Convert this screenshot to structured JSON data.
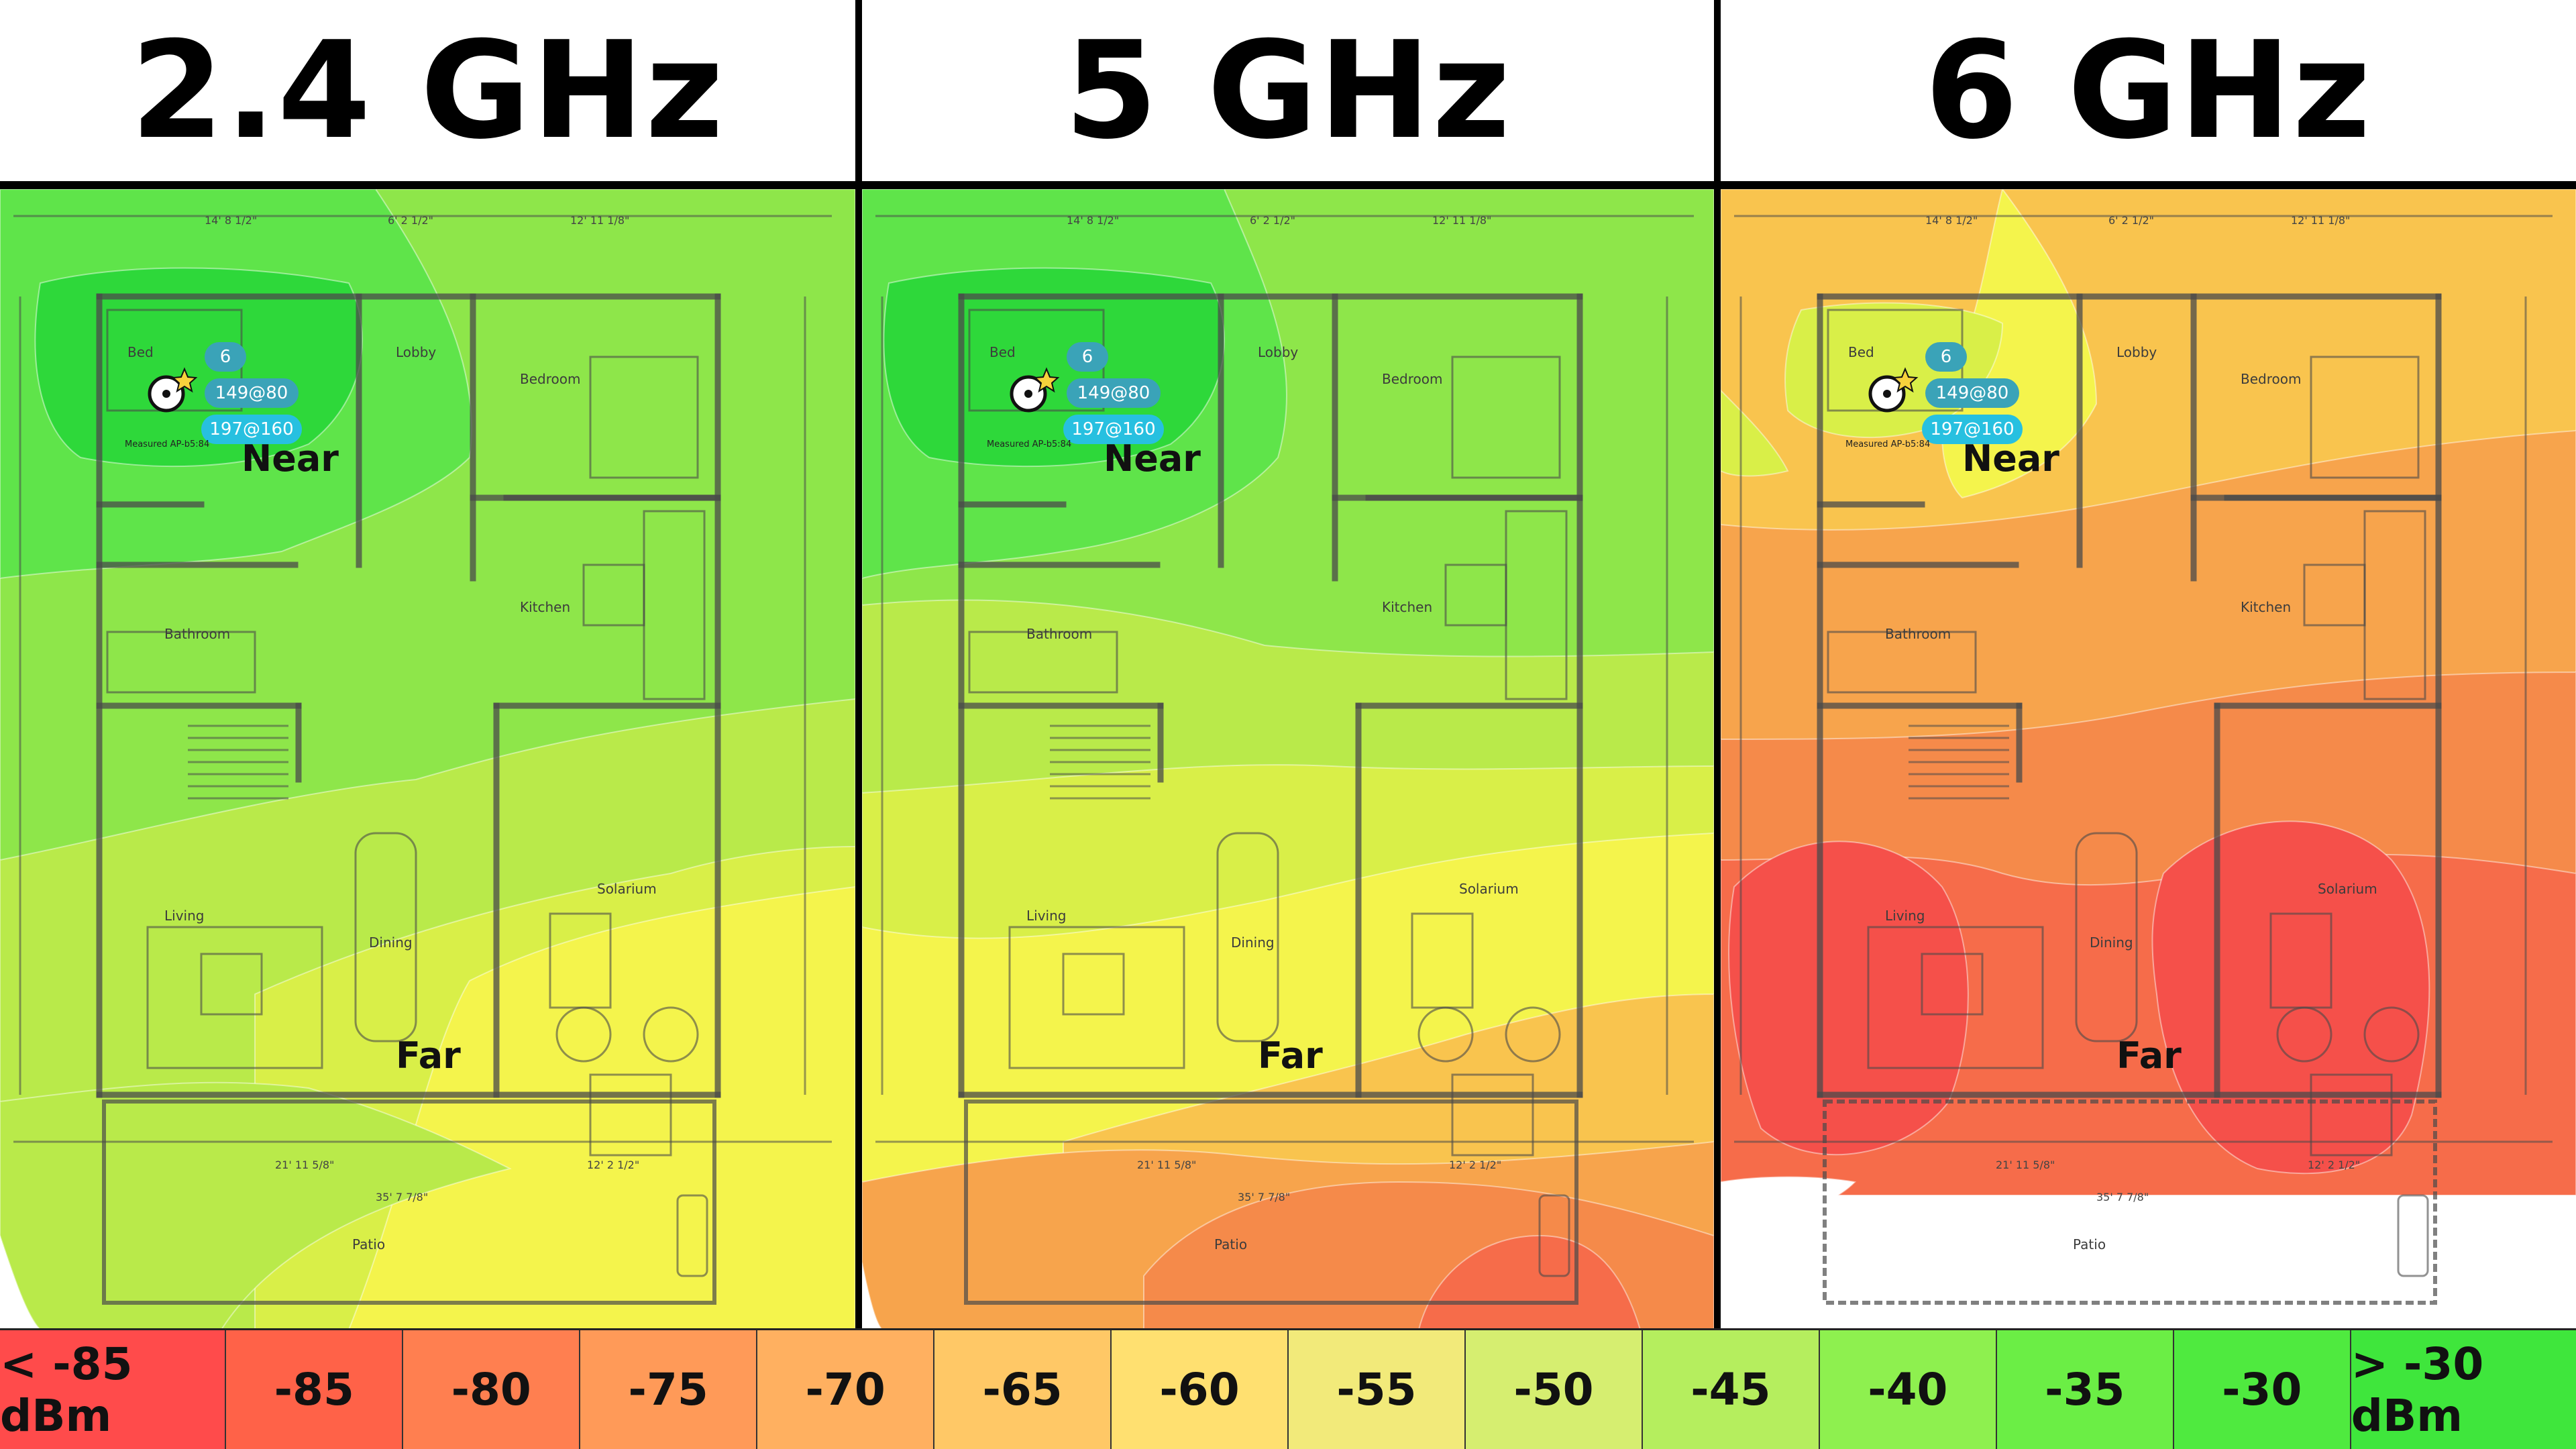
{
  "panels": [
    {
      "title": "2.4 GHz",
      "near_label": "Near",
      "far_label": "Far"
    },
    {
      "title": "5 GHz",
      "near_label": "Near",
      "far_label": "Far"
    },
    {
      "title": "6 GHz",
      "near_label": "Near",
      "far_label": "Far"
    }
  ],
  "ap": {
    "badge1": "6",
    "badge2": "149@80",
    "badge3": "197@160",
    "caption": "Measured AP-b5:84"
  },
  "rooms": {
    "bedroom_left": "Bed",
    "lobby": "Lobby",
    "bedroom": "Bedroom",
    "bathroom": "Bathroom",
    "kitchen": "Kitchen",
    "living": "Living",
    "dining": "Dining",
    "solarium": "Solarium",
    "patio": "Patio"
  },
  "dimensions": {
    "d1": "14' 8 1/2\"",
    "d2": "6' 2 1/2\"",
    "d3": "12' 11 1/8\"",
    "d4": "21' 11 5/8\"",
    "d5": "12' 2 1/2\"",
    "d6": "35' 7 7/8\""
  },
  "legend": [
    {
      "label": "< -85 dBm",
      "color": "#ff4b4b"
    },
    {
      "label": "-85",
      "color": "#ff6248"
    },
    {
      "label": "-80",
      "color": "#ff7f50"
    },
    {
      "label": "-75",
      "color": "#ff9a58"
    },
    {
      "label": "-70",
      "color": "#ffb060"
    },
    {
      "label": "-65",
      "color": "#ffc866"
    },
    {
      "label": "-60",
      "color": "#ffe070"
    },
    {
      "label": "-55",
      "color": "#f2ea7a"
    },
    {
      "label": "-50",
      "color": "#d6ee70"
    },
    {
      "label": "-45",
      "color": "#b5ee5e"
    },
    {
      "label": "-40",
      "color": "#8ef04f"
    },
    {
      "label": "-35",
      "color": "#6bee45"
    },
    {
      "label": "-30",
      "color": "#4fea3f"
    },
    {
      "label": "> -30 dBm",
      "color": "#3fe63c"
    }
  ],
  "heat_colors": {
    "green_dark": "#2ed83a",
    "green": "#5fe44a",
    "green_light": "#8ee64a",
    "lime": "#b9ea4a",
    "yellow_green": "#d9ef48",
    "yellow": "#f4f44c",
    "orange_light": "#f9c44e",
    "orange": "#f7a44c",
    "orange_dark": "#f58a4a",
    "red_orange": "#f66c4a",
    "red": "#f5504a"
  }
}
